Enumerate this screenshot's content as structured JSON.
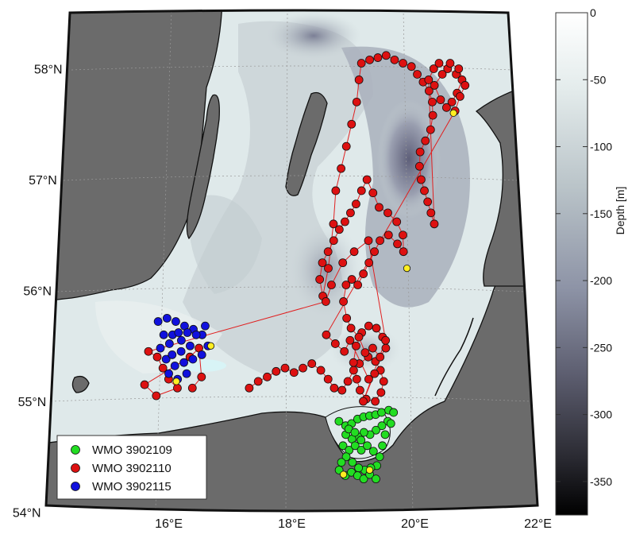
{
  "chart_data": {
    "type": "scatter",
    "title": "",
    "xlabel": "",
    "ylabel": "",
    "lon_ticks": [
      {
        "value": 16,
        "label": "16°E"
      },
      {
        "value": 18,
        "label": "18°E"
      },
      {
        "value": 20,
        "label": "20°E"
      },
      {
        "value": 22,
        "label": "22°E"
      }
    ],
    "lat_ticks": [
      {
        "value": 54,
        "label": "54°N"
      },
      {
        "value": 55,
        "label": "55°N"
      },
      {
        "value": 56,
        "label": "56°N"
      },
      {
        "value": 57,
        "label": "57°N"
      },
      {
        "value": 58,
        "label": "58°N"
      }
    ],
    "xlim": [
      14,
      22
    ],
    "ylim": [
      54,
      58.5
    ],
    "grid": true,
    "legend_position": "bottom-left",
    "colorbar": {
      "label": "Depth [m]",
      "range": [
        0,
        375
      ],
      "ticks": [
        {
          "value": 0,
          "label": "0"
        },
        {
          "value": 50,
          "label": "-50"
        },
        {
          "value": 100,
          "label": "-100"
        },
        {
          "value": 150,
          "label": "-150"
        },
        {
          "value": 200,
          "label": "-200"
        },
        {
          "value": 250,
          "label": "-250"
        },
        {
          "value": 300,
          "label": "-300"
        },
        {
          "value": 350,
          "label": "-350"
        }
      ],
      "colors": [
        "#ffffff",
        "#e4ecec",
        "#b9c3c8",
        "#8d93a6",
        "#5d5e70",
        "#2c2c34",
        "#000000"
      ]
    },
    "colors": {
      "land": "#6b6b6b",
      "coast": "#111111",
      "sea_shallow": "#dfe9ea",
      "sea_deep": "#6f7187",
      "track_line": "#e02020",
      "last_position": "#ffee22"
    },
    "series": [
      {
        "name": "WMO 3902109",
        "color": "#22dd22",
        "points": [
          [
            18.79,
            54.82
          ],
          [
            18.9,
            54.78
          ],
          [
            19.0,
            54.8
          ],
          [
            19.1,
            54.84
          ],
          [
            19.2,
            54.86
          ],
          [
            19.3,
            54.87
          ],
          [
            19.4,
            54.88
          ],
          [
            19.5,
            54.9
          ],
          [
            19.62,
            54.92
          ],
          [
            19.7,
            54.9
          ],
          [
            19.6,
            54.82
          ],
          [
            19.5,
            54.78
          ],
          [
            19.4,
            54.74
          ],
          [
            19.3,
            54.7
          ],
          [
            19.2,
            54.72
          ],
          [
            19.1,
            54.68
          ],
          [
            19.0,
            54.66
          ],
          [
            18.9,
            54.7
          ],
          [
            18.85,
            54.6
          ],
          [
            18.95,
            54.56
          ],
          [
            19.05,
            54.6
          ],
          [
            19.15,
            54.56
          ],
          [
            19.25,
            54.6
          ],
          [
            19.35,
            54.55
          ],
          [
            19.45,
            54.5
          ],
          [
            19.4,
            54.42
          ],
          [
            19.3,
            54.4
          ],
          [
            19.2,
            54.38
          ],
          [
            19.1,
            54.4
          ],
          [
            19.0,
            54.45
          ],
          [
            18.9,
            54.5
          ],
          [
            18.82,
            54.45
          ],
          [
            18.78,
            54.38
          ],
          [
            18.88,
            54.33
          ],
          [
            18.98,
            54.36
          ],
          [
            19.08,
            54.33
          ],
          [
            19.18,
            54.3
          ],
          [
            19.28,
            54.34
          ],
          [
            19.38,
            54.3
          ],
          [
            19.5,
            54.6
          ],
          [
            19.55,
            54.7
          ],
          [
            19.65,
            54.8
          ],
          [
            18.95,
            54.75
          ],
          [
            19.05,
            54.72
          ],
          [
            19.15,
            54.65
          ]
        ],
        "last": [
          [
            18.85,
            54.34
          ],
          [
            19.28,
            54.38
          ]
        ]
      },
      {
        "name": "WMO 3902110",
        "color": "#dd1111",
        "points": [
          [
            17.3,
            55.12
          ],
          [
            17.45,
            55.18
          ],
          [
            17.6,
            55.22
          ],
          [
            17.75,
            55.27
          ],
          [
            17.9,
            55.3
          ],
          [
            18.05,
            55.26
          ],
          [
            18.2,
            55.3
          ],
          [
            18.35,
            55.34
          ],
          [
            18.5,
            55.28
          ],
          [
            18.62,
            55.2
          ],
          [
            18.72,
            55.12
          ],
          [
            18.85,
            55.1
          ],
          [
            18.95,
            55.18
          ],
          [
            19.05,
            55.28
          ],
          [
            19.15,
            55.34
          ],
          [
            19.3,
            55.4
          ],
          [
            19.42,
            55.36
          ],
          [
            19.5,
            55.28
          ],
          [
            19.55,
            55.18
          ],
          [
            19.5,
            55.08
          ],
          [
            19.4,
            55.0
          ],
          [
            19.25,
            55.02
          ],
          [
            19.15,
            55.1
          ],
          [
            19.1,
            55.2
          ],
          [
            19.05,
            55.35
          ],
          [
            19.1,
            55.5
          ],
          [
            19.2,
            55.62
          ],
          [
            19.32,
            55.68
          ],
          [
            19.45,
            55.66
          ],
          [
            19.55,
            55.58
          ],
          [
            19.6,
            55.48
          ],
          [
            19.5,
            55.4
          ],
          [
            19.38,
            55.48
          ],
          [
            19.25,
            55.44
          ],
          [
            19.15,
            55.58
          ],
          [
            19.02,
            55.66
          ],
          [
            18.95,
            55.75
          ],
          [
            18.9,
            55.9
          ],
          [
            18.95,
            56.05
          ],
          [
            19.05,
            56.1
          ],
          [
            19.15,
            56.05
          ],
          [
            19.25,
            56.15
          ],
          [
            19.35,
            56.25
          ],
          [
            19.45,
            56.35
          ],
          [
            19.55,
            56.45
          ],
          [
            19.7,
            56.5
          ],
          [
            19.85,
            56.42
          ],
          [
            19.95,
            56.35
          ],
          [
            19.95,
            56.5
          ],
          [
            19.85,
            56.62
          ],
          [
            19.7,
            56.7
          ],
          [
            19.55,
            56.75
          ],
          [
            19.45,
            56.88
          ],
          [
            19.35,
            57.0
          ],
          [
            19.25,
            56.9
          ],
          [
            19.15,
            56.78
          ],
          [
            19.05,
            56.7
          ],
          [
            18.95,
            56.62
          ],
          [
            18.85,
            56.55
          ],
          [
            18.75,
            56.45
          ],
          [
            18.65,
            56.35
          ],
          [
            18.55,
            56.25
          ],
          [
            18.5,
            56.1
          ],
          [
            18.55,
            55.95
          ],
          [
            18.65,
            56.2
          ],
          [
            18.75,
            56.6
          ],
          [
            18.8,
            56.9
          ],
          [
            18.9,
            57.1
          ],
          [
            19.0,
            57.3
          ],
          [
            19.1,
            57.5
          ],
          [
            19.2,
            57.7
          ],
          [
            19.25,
            57.9
          ],
          [
            19.3,
            58.05
          ],
          [
            19.45,
            58.08
          ],
          [
            19.6,
            58.1
          ],
          [
            19.75,
            58.12
          ],
          [
            19.9,
            58.08
          ],
          [
            20.05,
            58.05
          ],
          [
            20.2,
            58.02
          ],
          [
            20.3,
            57.95
          ],
          [
            20.4,
            57.88
          ],
          [
            20.5,
            57.8
          ],
          [
            20.55,
            57.7
          ],
          [
            20.55,
            57.58
          ],
          [
            20.5,
            57.45
          ],
          [
            20.4,
            57.35
          ],
          [
            20.3,
            57.25
          ],
          [
            20.28,
            57.12
          ],
          [
            20.3,
            57.0
          ],
          [
            20.35,
            56.9
          ],
          [
            20.4,
            56.8
          ],
          [
            20.45,
            56.7
          ],
          [
            20.5,
            56.6
          ],
          [
            20.5,
            57.9
          ],
          [
            20.6,
            58.0
          ],
          [
            20.7,
            58.05
          ],
          [
            20.85,
            58.0
          ],
          [
            21.0,
            57.95
          ],
          [
            21.1,
            57.9
          ],
          [
            21.0,
            57.78
          ],
          [
            20.9,
            57.7
          ],
          [
            20.8,
            57.65
          ],
          [
            20.7,
            57.72
          ],
          [
            20.6,
            57.85
          ],
          [
            20.75,
            57.95
          ],
          [
            20.9,
            58.05
          ],
          [
            21.05,
            58.0
          ],
          [
            21.15,
            57.85
          ],
          [
            21.05,
            57.75
          ],
          [
            20.95,
            57.62
          ],
          [
            18.6,
            55.6
          ],
          [
            18.75,
            55.52
          ],
          [
            18.9,
            55.45
          ],
          [
            19.0,
            55.55
          ],
          [
            19.3,
            55.2
          ],
          [
            19.4,
            55.25
          ],
          [
            19.2,
            55.0
          ],
          [
            19.6,
            55.55
          ],
          [
            19.35,
            56.45
          ],
          [
            19.1,
            56.35
          ],
          [
            18.9,
            56.25
          ],
          [
            18.7,
            56.05
          ],
          [
            18.6,
            55.9
          ],
          [
            15.6,
            55.45
          ],
          [
            15.75,
            55.4
          ],
          [
            15.85,
            55.3
          ],
          [
            15.95,
            55.2
          ],
          [
            16.1,
            55.12
          ],
          [
            15.75,
            55.05
          ],
          [
            15.55,
            55.15
          ],
          [
            16.3,
            55.4
          ],
          [
            16.45,
            55.48
          ],
          [
            16.5,
            55.22
          ],
          [
            16.35,
            55.12
          ]
        ],
        "last": [
          [
            20.0,
            56.2
          ],
          [
            20.92,
            57.6
          ]
        ]
      },
      {
        "name": "WMO 3902115",
        "color": "#1111dd",
        "points": [
          [
            15.75,
            55.72
          ],
          [
            15.9,
            55.75
          ],
          [
            16.05,
            55.72
          ],
          [
            16.2,
            55.68
          ],
          [
            16.35,
            55.65
          ],
          [
            16.5,
            55.6
          ],
          [
            16.6,
            55.5
          ],
          [
            16.5,
            55.42
          ],
          [
            16.35,
            55.38
          ],
          [
            16.2,
            55.35
          ],
          [
            16.05,
            55.32
          ],
          [
            15.9,
            55.38
          ],
          [
            15.8,
            55.48
          ],
          [
            15.85,
            55.6
          ],
          [
            16.0,
            55.6
          ],
          [
            16.15,
            55.55
          ],
          [
            16.3,
            55.5
          ],
          [
            16.4,
            55.6
          ],
          [
            16.25,
            55.25
          ],
          [
            16.1,
            55.2
          ],
          [
            15.95,
            55.25
          ],
          [
            16.0,
            55.42
          ],
          [
            16.15,
            55.45
          ],
          [
            16.25,
            55.62
          ],
          [
            16.55,
            55.68
          ],
          [
            15.95,
            55.52
          ],
          [
            16.1,
            55.62
          ]
        ],
        "last": [
          [
            16.08,
            55.18
          ],
          [
            16.65,
            55.5
          ]
        ]
      }
    ]
  }
}
